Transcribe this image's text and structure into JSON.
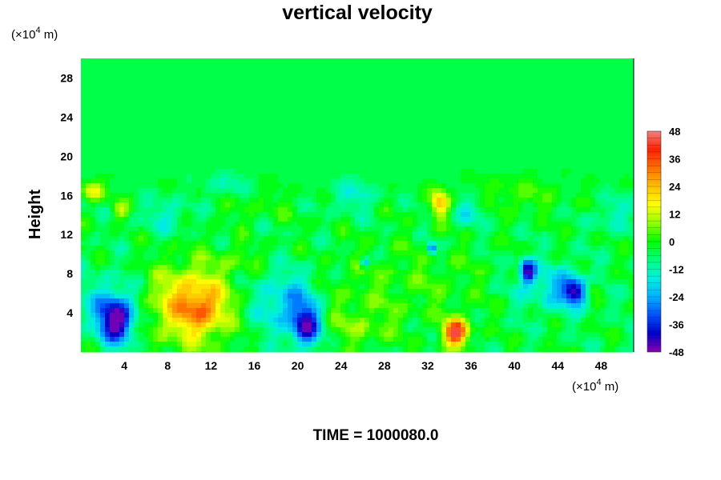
{
  "chart_data": {
    "type": "heatmap",
    "title": "vertical velocity",
    "ylabel": "Height",
    "xlabel": "",
    "x_unit_prefix": "(×10",
    "x_unit_exp": "4",
    "x_unit_suffix": " m)",
    "y_unit_prefix": "(×10",
    "y_unit_exp": "4",
    "y_unit_suffix": " m)",
    "xlim": [
      0,
      51
    ],
    "ylim": [
      0,
      30
    ],
    "x_ticks": [
      "4",
      "8",
      "12",
      "16",
      "20",
      "24",
      "28",
      "32",
      "36",
      "40",
      "44",
      "48"
    ],
    "y_ticks": [
      "4",
      "8",
      "12",
      "16",
      "20",
      "24",
      "28"
    ],
    "colorbar": {
      "range": [
        -48,
        48
      ],
      "ticks": [
        "48",
        "36",
        "24",
        "12",
        "0",
        "-12",
        "-24",
        "-36",
        "-48"
      ],
      "levels": 32,
      "colors": [
        "#8a00b0",
        "#0000c8",
        "#0050ff",
        "#00b0ff",
        "#00f0e0",
        "#00ff80",
        "#00ff00",
        "#90ff00",
        "#ffff00",
        "#ffc000",
        "#ff7000",
        "#ff2000",
        "#f08080"
      ]
    },
    "background_value": -4,
    "features": [
      {
        "x": 3.3,
        "y": 3.2,
        "sx": 1.1,
        "sy": 1.6,
        "value": -40
      },
      {
        "x": 2.4,
        "y": 4.8,
        "sx": 2.0,
        "sy": 2.2,
        "value": -12
      },
      {
        "x": 10.2,
        "y": 4.8,
        "sx": 2.6,
        "sy": 2.8,
        "value": 30
      },
      {
        "x": 11.3,
        "y": 4.3,
        "sx": 1.2,
        "sy": 1.3,
        "value": 10
      },
      {
        "x": 20.8,
        "y": 2.6,
        "sx": 0.9,
        "sy": 1.4,
        "value": -34
      },
      {
        "x": 19.4,
        "y": 5.0,
        "sx": 2.4,
        "sy": 2.3,
        "value": -20
      },
      {
        "x": 34.6,
        "y": 2.0,
        "sx": 0.8,
        "sy": 1.0,
        "value": 46
      },
      {
        "x": 41.2,
        "y": 8.3,
        "sx": 0.5,
        "sy": 0.9,
        "value": -38
      },
      {
        "x": 45.6,
        "y": 6.2,
        "sx": 0.8,
        "sy": 0.9,
        "value": -36
      },
      {
        "x": 43.6,
        "y": 6.6,
        "sx": 2.4,
        "sy": 1.8,
        "value": -14
      },
      {
        "x": 47.1,
        "y": 6.5,
        "sx": 0.6,
        "sy": 0.7,
        "value": 14
      },
      {
        "x": 33.1,
        "y": 15.2,
        "sx": 0.6,
        "sy": 1.0,
        "value": 28
      },
      {
        "x": 1.1,
        "y": 16.5,
        "sx": 0.7,
        "sy": 0.7,
        "value": 22
      },
      {
        "x": 3.6,
        "y": 14.5,
        "sx": 0.5,
        "sy": 0.7,
        "value": 14
      },
      {
        "x": 29.5,
        "y": 7.0,
        "sx": 6.0,
        "sy": 3.0,
        "value": 6
      },
      {
        "x": 40.2,
        "y": 16.0,
        "sx": 3.0,
        "sy": 1.3,
        "value": 7
      },
      {
        "x": 16.0,
        "y": 15.0,
        "sx": 3.0,
        "sy": 1.3,
        "value": 4
      },
      {
        "x": 8.0,
        "y": 14.0,
        "sx": 1.5,
        "sy": 1.2,
        "value": -10
      },
      {
        "x": 13.5,
        "y": 17.0,
        "sx": 1.3,
        "sy": 1.0,
        "value": -9
      },
      {
        "x": 25.0,
        "y": 16.0,
        "sx": 1.5,
        "sy": 1.2,
        "value": -10
      },
      {
        "x": 36.0,
        "y": 14.5,
        "sx": 1.2,
        "sy": 1.0,
        "value": -11
      },
      {
        "x": 49.0,
        "y": 14.0,
        "sx": 1.0,
        "sy": 1.2,
        "value": -10
      },
      {
        "x": 32.4,
        "y": 10.6,
        "sx": 0.3,
        "sy": 0.4,
        "value": -30
      },
      {
        "x": 26.2,
        "y": 9.2,
        "sx": 0.3,
        "sy": 0.4,
        "value": -26
      },
      {
        "x": 23.0,
        "y": 4.5,
        "sx": 1.5,
        "sy": 2.0,
        "value": 6
      },
      {
        "x": 26.0,
        "y": 2.5,
        "sx": 2.0,
        "sy": 1.5,
        "value": 8
      },
      {
        "x": 14.5,
        "y": 9.5,
        "sx": 1.5,
        "sy": 1.0,
        "value": 6
      }
    ]
  },
  "footer": {
    "time_label": "TIME = 1000080.0"
  }
}
